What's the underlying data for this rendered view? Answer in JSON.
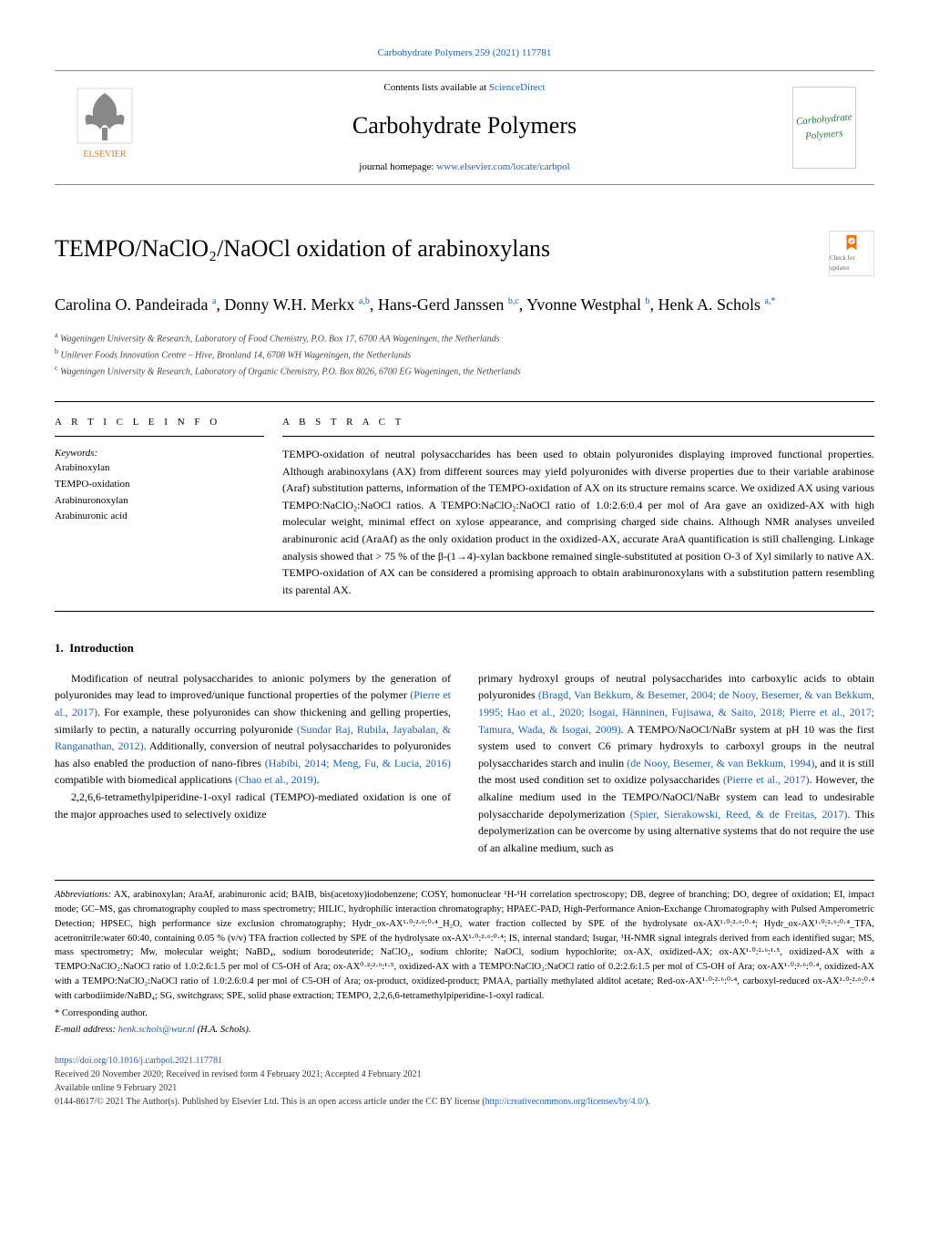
{
  "header": {
    "top_citation": "Carbohydrate Polymers 259 (2021) 117781",
    "contents_prefix": "Contents lists available at ",
    "contents_link": "ScienceDirect",
    "journal_name": "Carbohydrate Polymers",
    "homepage_prefix": "journal homepage: ",
    "homepage_link": "www.elsevier.com/locate/carbpol",
    "cover_text1": "Carbohydrate",
    "cover_text2": "Polymers",
    "check_updates": "Check for updates"
  },
  "article": {
    "title": "TEMPO/NaClO₂/NaOCl oxidation of arabinoxylans",
    "authors_html": "Carolina O. Pandeirada <sup>a</sup>, Donny W.H. Merkx <sup>a,b</sup>, Hans-Gerd Janssen <sup>b,c</sup>, Yvonne Westphal <sup>b</sup>, Henk A. Schols <sup>a,*</sup>",
    "affiliations": {
      "a": "Wageningen University & Research, Laboratory of Food Chemistry, P.O. Box 17, 6700 AA Wageningen, the Netherlands",
      "b": "Unilever Foods Innovation Centre – Hive, Bronland 14, 6708 WH Wageningen, the Netherlands",
      "c": "Wageningen University & Research, Laboratory of Organic Chemistry, P.O. Box 8026, 6700 EG Wageningen, the Netherlands"
    }
  },
  "info": {
    "article_info_head": "A R T I C L E  I N F O",
    "abstract_head": "A B S T R A C T",
    "keywords_label": "Keywords:",
    "keywords": [
      "Arabinoxylan",
      "TEMPO-oxidation",
      "Arabinuronoxylan",
      "Arabinuronic acid"
    ],
    "abstract": "TEMPO-oxidation of neutral polysaccharides has been used to obtain polyuronides displaying improved functional properties. Although arabinoxylans (AX) from different sources may yield polyuronides with diverse properties due to their variable arabinose (Araf) substitution patterns, information of the TEMPO-oxidation of AX on its structure remains scarce. We oxidized AX using various TEMPO:NaClO₂:NaOCl ratios. A TEMPO:NaClO₂:NaOCl ratio of 1.0:2.6:0.4 per mol of Ara gave an oxidized-AX with high molecular weight, minimal effect on xylose appearance, and comprising charged side chains. Although NMR analyses unveiled arabinuronic acid (AraAf) as the only oxidation product in the oxidized-AX, accurate AraA quantification is still challenging. Linkage analysis showed that > 75 % of the β-(1→4)-xylan backbone remained single-substituted at position O-3 of Xyl similarly to native AX. TEMPO-oxidation of AX can be considered a promising approach to obtain arabinuronoxylans with a substitution pattern resembling its parental AX."
  },
  "body": {
    "section_no": "1.",
    "section_title": "Introduction",
    "col1_p1": "Modification of neutral polysaccharides to anionic polymers by the generation of polyuronides may lead to improved/unique functional properties of the polymer (Pierre et al., 2017). For example, these polyuronides can show thickening and gelling properties, similarly to pectin, a naturally occurring polyuronide (Sundar Raj, Rubila, Jayabalan, & Ranganathan, 2012). Additionally, conversion of neutral polysaccharides to polyuronides has also enabled the production of nano-fibres (Habibi, 2014; Meng, Fu, & Lucia, 2016) compatible with biomedical applications (Chao et al., 2019).",
    "col1_p2": "2,2,6,6-tetramethylpiperidine-1-oxyl radical (TEMPO)-mediated oxidation is one of the major approaches used to selectively oxidize",
    "col2_p1": "primary hydroxyl groups of neutral polysaccharides into carboxylic acids to obtain polyuronides (Bragd, Van Bekkum, & Besemer, 2004; de Nooy, Besemer, & van Bekkum, 1995; Hao et al., 2020; Isogai, Hänninen, Fujisawa, & Saito, 2018; Pierre et al., 2017; Tamura, Wada, & Isogai, 2009). A TEMPO/NaOCl/NaBr system at pH 10 was the first system used to convert C6 primary hydroxyls to carboxyl groups in the neutral polysaccharides starch and inulin (de Nooy, Besemer, & van Bekkum, 1994), and it is still the most used condition set to oxidize polysaccharides (Pierre et al., 2017). However, the alkaline medium used in the TEMPO/NaOCl/NaBr system can lead to undesirable polysaccharide depolymerization (Spier, Sierakowski, Reed, & de Freitas, 2017). This depolymerization can be overcome by using alternative systems that do not require the use of an alkaline medium, such as"
  },
  "footnotes": {
    "abbrev_label": "Abbreviations:",
    "abbrev_text": " AX, arabinoxylan; AraAf, arabinuronic acid; BAIB, bis(acetoxy)iodobenzene; COSY, homonuclear ¹H-¹H correlation spectroscopy; DB, degree of branching; DO, degree of oxidation; EI, impact mode; GC–MS, gas chromatography coupled to mass spectrometry; HILIC, hydrophilic interaction chromatography; HPAEC-PAD, High-Performance Anion-Exchange Chromatography with Pulsed Amperometric Detection; HPSEC, high performance size exclusion chromatography; Hydr_ox-AX¹·⁰:²·⁶:⁰·⁴_H₂O, water fraction collected by SPE of the hydrolysate ox-AX¹·⁰:²·⁶:⁰·⁴; Hydr_ox-AX¹·⁰:²·⁶:⁰·⁴_TFA, acetronitrile:water 60:40, containing 0.05 % (v/v) TFA fraction collected by SPE of the hydrolysate ox-AX¹·⁰:²·⁶:⁰·⁴; IS, internal standard; Isugar, ¹H-NMR signal integrals derived from each identified sugar; MS, mass spectrometry; Mw, molecular weight; NaBD₄, sodium borodeuteride; NaClO₂, sodium chlorite; NaOCl, sodium hypochlorite; ox-AX, oxidized-AX; ox-AX¹·⁰:²·⁶:¹·⁵, oxidized-AX with a TEMPO:NaClO₂:NaOCl ratio of 1.0:2.6:1.5 per mol of C5-OH of Ara; ox-AX⁰·²:²·⁶:¹·⁵, oxidized-AX with a TEMPO:NaClO₂:NaOCl ratio of 0.2:2.6:1.5 per mol of C5-OH of Ara; ox-AX¹·⁰:²·⁶:⁰·⁴, oxidized-AX with a TEMPO:NaClO₂:NaOCl ratio of 1.0:2.6:0.4 per mol of C5-OH of Ara; ox-product, oxidized-product; PMAA, partially methylated alditol acetate; Red-ox-AX¹·⁰:²·⁶:⁰·⁴, carboxyl-reduced ox-AX¹·⁰:²·⁶:⁰·⁴ with carbodiimide/NaBD₄; SG, switchgrass; SPE, solid phase extraction; TEMPO, 2,2,6,6-tetramethylpiperidine-1-oxyl radical.",
    "corr": "* Corresponding author.",
    "email_label": "E-mail address: ",
    "email": "henk.schols@wur.nl",
    "email_suffix": " (H.A. Schols)."
  },
  "doi": {
    "doi_link": "https://doi.org/10.1016/j.carbpol.2021.117781",
    "received": "Received 20 November 2020; Received in revised form 4 February 2021; Accepted 4 February 2021",
    "available": "Available online 9 February 2021",
    "copyright_prefix": "0144-8617/© 2021 The Author(s). Published by Elsevier Ltd. This is an open access article under the CC BY license (",
    "cc_link": "http://creativecommons.org/licenses/by/4.0/",
    "copyright_suffix": ")."
  }
}
